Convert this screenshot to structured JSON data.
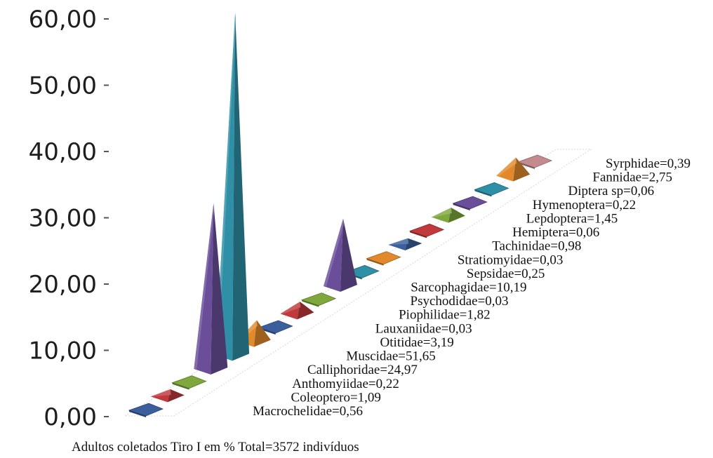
{
  "chart_data": {
    "type": "bar",
    "style": "3d-pyramid",
    "caption": "Adultos coletados Tiro I em % Total=3572 indivíduos",
    "ylim": [
      0,
      60
    ],
    "yticks": [
      "0,00",
      "10,00",
      "20,00",
      "30,00",
      "40,00",
      "50,00",
      "60,00"
    ],
    "grid": false,
    "legend": "none",
    "categories": [
      "Macrochelidae",
      "Coleoptero",
      "Anthomyiidae",
      "Calliphoridae",
      "Muscidae",
      "Otitidae",
      "Lauxaniidae",
      "Piophilidae",
      "Psychodidae",
      "Sarcophagidae",
      "Sepsidae",
      "Stratiomyidae",
      "Tachinidae",
      "Hemiptera",
      "Lepdoptera",
      "Hymenoptera",
      "Diptera sp",
      "Fannidae",
      "Syrphidae"
    ],
    "labels": [
      "Macrochelidae=0,56",
      "Coleoptero=1,09",
      "Anthomyiidae=0,22",
      "Calliphoridae=24,97",
      "Muscidae=51,65",
      "Otitidae=3,19",
      "Lauxaniidae=0,03",
      "Piophilidae=1,82",
      "Psychodidae=0,03",
      "Sarcophagidae=10,19",
      "Sepsidae=0,25",
      "Stratiomyidae=0,03",
      "Tachinidae=0,98",
      "Hemiptera=0,06",
      "Lepdoptera=1,45",
      "Hymenoptera=0,22",
      "Diptera sp=0,06",
      "Fannidae=2,75",
      "Syrphidae=0,39"
    ],
    "values": [
      0.56,
      1.09,
      0.22,
      24.97,
      51.65,
      3.19,
      0.03,
      1.82,
      0.03,
      10.19,
      0.25,
      0.03,
      0.98,
      0.06,
      1.45,
      0.22,
      0.06,
      2.75,
      0.39
    ],
    "colors": [
      "#3b5f9c",
      "#c0393b",
      "#7ea83c",
      "#6a4e9a",
      "#2f8fa6",
      "#e2892b",
      "#3b5f9c",
      "#c0393b",
      "#7ea83c",
      "#6a4e9a",
      "#2f8fa6",
      "#e2892b",
      "#3b5f9c",
      "#c0393b",
      "#7ea83c",
      "#6a4e9a",
      "#2f8fa6",
      "#e2892b",
      "#c48a8e"
    ]
  }
}
